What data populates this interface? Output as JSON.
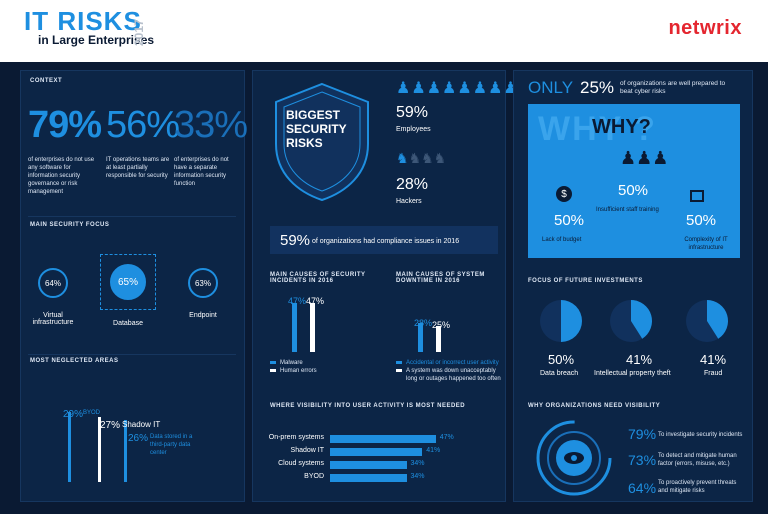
{
  "header": {
    "title": "IT RISKS",
    "subtitle": "in Large Enterprises",
    "year": "2017",
    "brand": "netwrix"
  },
  "context": {
    "title": "CONTEXT",
    "stats": [
      {
        "value": "79%",
        "text": "of enterprises do not use any software for information security governance or risk management"
      },
      {
        "value": "56%",
        "text": "IT operations teams are at least partially responsible for security"
      },
      {
        "value": "33%",
        "text": "of enterprises do not have a separate information security function"
      }
    ]
  },
  "focus": {
    "title": "MAIN SECURITY FOCUS",
    "items": [
      {
        "pct": "64%",
        "label": "Virtual infrastructure"
      },
      {
        "pct": "65%",
        "label": "Database"
      },
      {
        "pct": "63%",
        "label": "Endpoint"
      }
    ]
  },
  "neglected": {
    "title": "MOST NEGLECTED AREAS",
    "items": [
      {
        "pct": "29%",
        "label": "BYOD",
        "value": 29
      },
      {
        "pct": "27%",
        "label": "Shadow IT",
        "value": 27
      },
      {
        "pct": "26%",
        "label": "Data stored in a third-party data center",
        "value": 26
      }
    ]
  },
  "risks": {
    "shield": "BIGGEST SECURITY RISKS",
    "employees_pct": "59%",
    "employees_label": "Employees",
    "hackers_pct": "28%",
    "hackers_label": "Hackers",
    "compliance_pct": "59%",
    "compliance_text": "of organizations had compliance issues in 2016"
  },
  "incidents": {
    "title": "MAIN CAUSES OF SECURITY INCIDENTS IN 2016",
    "bars": [
      {
        "pct": "47%",
        "value": 47,
        "color": "blue"
      },
      {
        "pct": "47%",
        "value": 47,
        "color": "white"
      }
    ],
    "legend": [
      "Malware",
      "Human errors"
    ]
  },
  "downtime": {
    "title": "MAIN CAUSES OF SYSTEM DOWNTIME IN 2016",
    "bars": [
      {
        "pct": "28%",
        "value": 28,
        "color": "blue"
      },
      {
        "pct": "25%",
        "value": 25,
        "color": "white"
      }
    ],
    "legend": [
      "Accidental or incorrect user activity",
      "A system was down unacceptably long or outages happened too often"
    ]
  },
  "visibility_needed": {
    "title": "WHERE VISIBILITY INTO USER ACTIVITY IS MOST NEEDED",
    "rows": [
      {
        "label": "On-prem systems",
        "pct": "47%",
        "value": 47
      },
      {
        "label": "Shadow IT",
        "pct": "41%",
        "value": 41
      },
      {
        "label": "Cloud systems",
        "pct": "34%",
        "value": 34
      },
      {
        "label": "BYOD",
        "pct": "34%",
        "value": 34
      }
    ]
  },
  "only": {
    "prefix": "ONLY",
    "pct": "25%",
    "text": "of organizations are well prepared to beat cyber risks"
  },
  "why": {
    "title": "WHY?",
    "items": [
      {
        "pct": "50%",
        "label": "Lack of budget"
      },
      {
        "pct": "50%",
        "label": "Insufficient staff training"
      },
      {
        "pct": "50%",
        "label": "Complexity of IT infrastructure"
      }
    ]
  },
  "investments": {
    "title": "FOCUS OF FUTURE INVESTMENTS",
    "items": [
      {
        "pct": "50%",
        "label": "Data breach",
        "value": 50
      },
      {
        "pct": "41%",
        "label": "Intellectual property theft",
        "value": 41
      },
      {
        "pct": "41%",
        "label": "Fraud",
        "value": 41
      }
    ]
  },
  "need": {
    "title": "WHY ORGANIZATIONS NEED VISIBILITY",
    "items": [
      {
        "pct": "79%",
        "text": "To investigate security incidents"
      },
      {
        "pct": "73%",
        "text": "To detect and mitigate human factor (errors, misuse, etc.)"
      },
      {
        "pct": "64%",
        "text": "To proactively prevent threats and mitigate risks"
      }
    ]
  }
}
